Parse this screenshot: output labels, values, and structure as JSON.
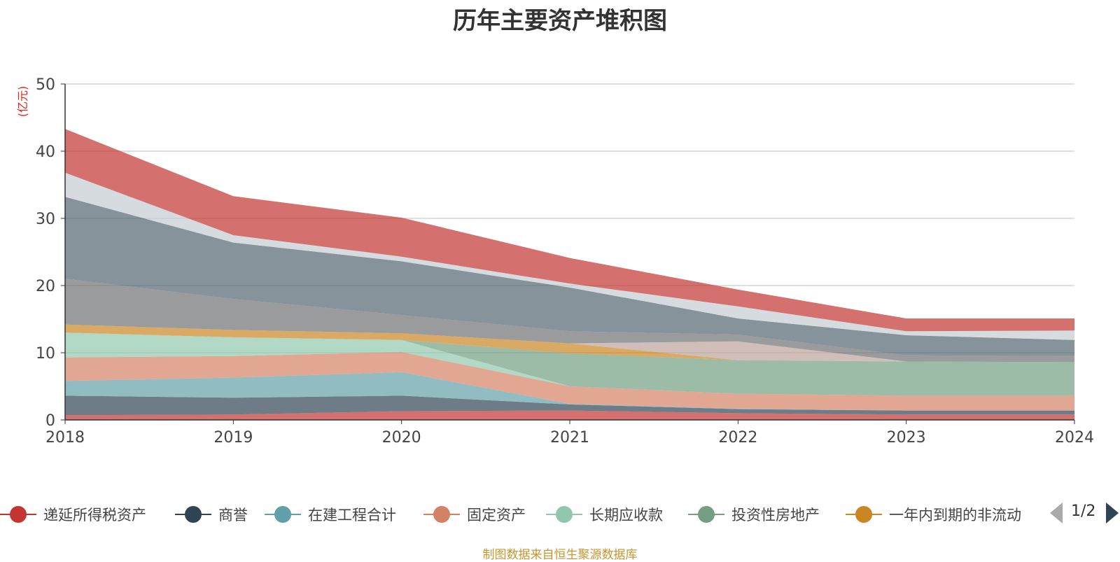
{
  "title": "历年主要资产堆积图",
  "source_note": "制图数据来自恒生聚源数据库",
  "legend_page": "1/2",
  "chart_data": {
    "type": "area",
    "stacked": true,
    "title": "历年主要资产堆积图",
    "ylabel": "(亿元)",
    "xlabel": "",
    "x": [
      "2018",
      "2019",
      "2020",
      "2021",
      "2022",
      "2023",
      "2024"
    ],
    "ylim": [
      0,
      50
    ],
    "yticks": [
      0,
      10,
      20,
      30,
      40,
      50
    ],
    "grid": true,
    "legend_position": "bottom",
    "series": [
      {
        "name": "递延所得税资产",
        "color": "#c23531",
        "values": [
          0.7,
          0.8,
          1.3,
          1.4,
          1.0,
          0.8,
          0.8
        ]
      },
      {
        "name": "商誉",
        "color": "#2f4554",
        "values": [
          2.9,
          2.5,
          2.3,
          0.9,
          0.6,
          0.6,
          0.6
        ]
      },
      {
        "name": "在建工程合计",
        "color": "#61a0a8",
        "values": [
          2.2,
          3.0,
          3.5,
          0.1,
          0.1,
          0.0,
          0.0
        ]
      },
      {
        "name": "固定资产",
        "color": "#d48265",
        "values": [
          3.5,
          3.2,
          3.0,
          2.6,
          2.2,
          2.2,
          2.2
        ]
      },
      {
        "name": "长期应收款",
        "color": "#91c7ae",
        "values": [
          3.7,
          2.8,
          1.8,
          0.0,
          0.0,
          0.0,
          0.0
        ]
      },
      {
        "name": "投资性房地产",
        "color": "#749f83",
        "values": [
          0.0,
          0.0,
          0.0,
          4.9,
          5.0,
          5.1,
          5.0
        ]
      },
      {
        "name": "一年内到期的非流动",
        "color": "#ca8622",
        "values": [
          1.2,
          1.1,
          1.0,
          1.5,
          0.0,
          0.0,
          0.0
        ]
      },
      {
        "name": "",
        "color": "#bda29a",
        "values": [
          0.0,
          0.0,
          0.0,
          0.0,
          2.8,
          0.0,
          0.0
        ]
      },
      {
        "name": "",
        "color": "#6e7074",
        "values": [
          6.8,
          4.6,
          2.7,
          1.8,
          1.0,
          0.9,
          0.9
        ]
      },
      {
        "name": "",
        "color": "#546570",
        "values": [
          12.2,
          8.4,
          8.0,
          6.5,
          2.4,
          3.0,
          2.4
        ]
      },
      {
        "name": "",
        "color": "#c4ccd3",
        "values": [
          3.6,
          1.1,
          0.7,
          0.6,
          1.8,
          0.6,
          1.4
        ]
      },
      {
        "name": "",
        "color": "#c23531",
        "values": [
          6.5,
          5.8,
          5.8,
          3.8,
          2.5,
          1.9,
          1.8
        ]
      }
    ]
  }
}
